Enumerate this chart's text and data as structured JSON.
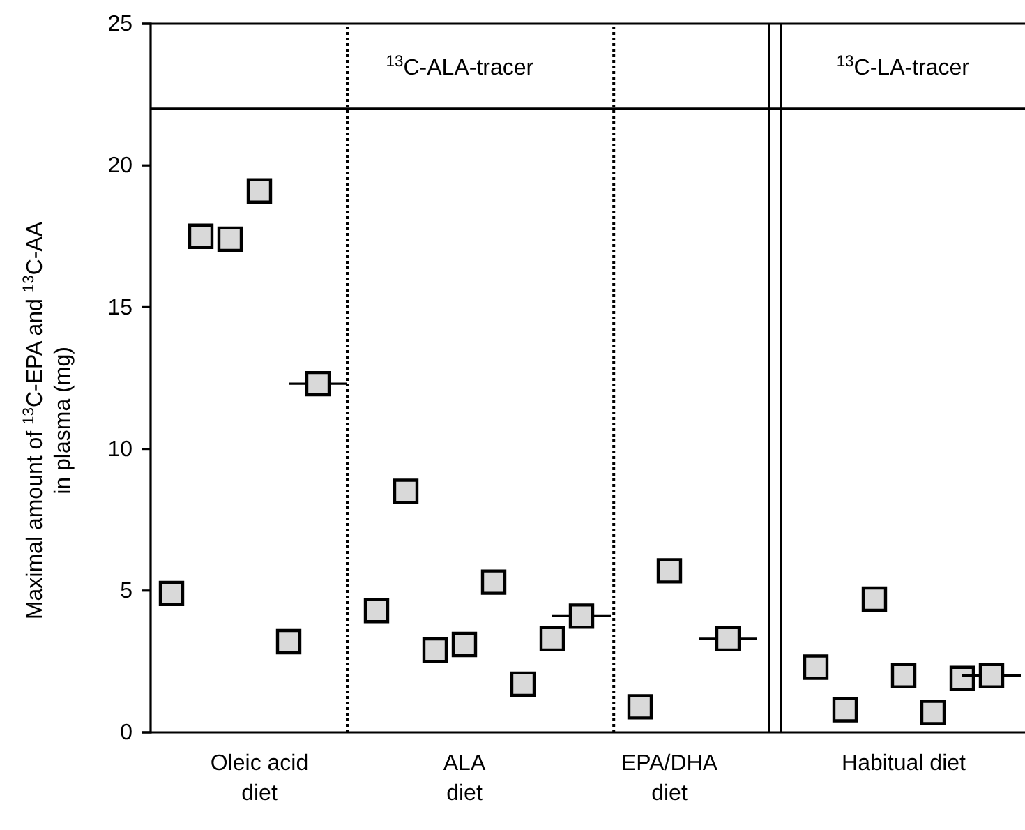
{
  "chart_data": {
    "type": "scatter",
    "ylabel": "Maximal amount of $^{13}$C-EPA and $^{13}$C-AA\nin plasma (mg)",
    "marker": "square",
    "grid": "x",
    "ylim": [
      0,
      25
    ],
    "yticks": [
      0,
      5,
      10,
      15,
      20,
      25
    ],
    "categories": [
      null,
      null,
      null,
      null,
      "Oleic acid\ndiet",
      null,
      null,
      null,
      null,
      null,
      null,
      "ALA\ndiet",
      null,
      null,
      null,
      null,
      null,
      null,
      "EPA/DHA\ndiet",
      null,
      null,
      null,
      null,
      null,
      null,
      null,
      "Habitual diet",
      null,
      null,
      null
    ],
    "series": [
      {
        "color": "#d9d9d9",
        "values": [
          null,
          4.9,
          17.5,
          17.4,
          19.1,
          3.2,
          null,
          null,
          4.3,
          8.5,
          2.9,
          3.1,
          5.3,
          1.7,
          3.3,
          null,
          null,
          0.9,
          5.7,
          null,
          null,
          null,
          null,
          2.3,
          0.8,
          4.7,
          2.0,
          0.7,
          1.9,
          null
        ]
      },
      {
        "color": "#d9d9d9",
        "values": [
          null,
          null,
          null,
          null,
          null,
          null,
          12.3,
          null,
          null,
          null,
          null,
          null,
          null,
          null,
          null,
          4.1,
          null,
          null,
          null,
          null,
          3.3,
          null,
          null,
          null,
          null,
          null,
          null,
          null,
          null,
          2.0
        ]
      }
    ],
    "ref_lines": [
      {
        "axis": "y",
        "value": 22,
        "line_style": "solid"
      }
    ],
    "annotations": [
      "$^{13}$C-ALA-tracer",
      "$^{13}$C-LA-tracer"
    ]
  }
}
